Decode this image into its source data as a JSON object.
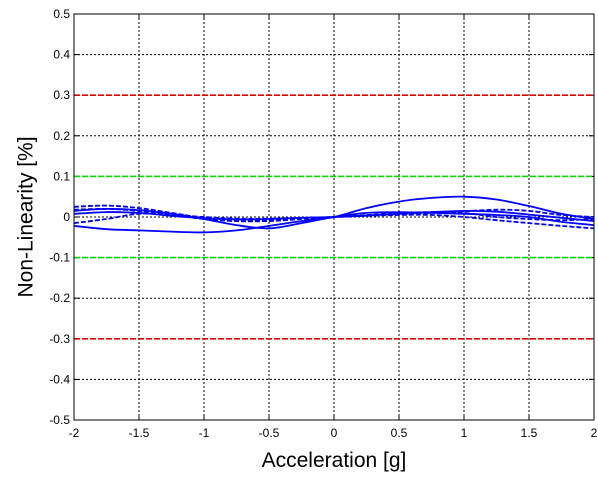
{
  "chart_data": {
    "type": "line",
    "xlabel": "Acceleration [g]",
    "ylabel": "Non-Linearity [%]",
    "xlim": [
      -2,
      2
    ],
    "ylim": [
      -0.5,
      0.5
    ],
    "xticks": [
      -2,
      -1.5,
      -1,
      -0.5,
      0,
      0.5,
      1,
      1.5,
      2
    ],
    "yticks": [
      -0.5,
      -0.4,
      -0.3,
      -0.2,
      -0.1,
      0,
      0.1,
      0.2,
      0.3,
      0.4,
      0.5
    ],
    "xtick_labels": [
      "-2",
      "-1.5",
      "-1",
      "-0.5",
      "0",
      "0.5",
      "1",
      "1.5",
      "2"
    ],
    "ytick_labels": [
      "-0.5",
      "-0.4",
      "-0.3",
      "-0.2",
      "-0.1",
      "0",
      "0.1",
      "0.2",
      "0.3",
      "0.4",
      "0.5"
    ],
    "grid": true,
    "x": [
      -2,
      -1.75,
      -1.5,
      -1.25,
      -1,
      -0.75,
      -0.5,
      -0.25,
      0,
      0.25,
      0.5,
      0.75,
      1,
      1.25,
      1.5,
      1.75,
      2
    ],
    "reference_lines": [
      {
        "y": 0.3,
        "color": "#e00000"
      },
      {
        "y": -0.3,
        "color": "#e00000"
      },
      {
        "y": 0.1,
        "color": "#00e000"
      },
      {
        "y": -0.1,
        "color": "#00e000"
      }
    ],
    "series_color": "#0000ff",
    "series": [
      {
        "values": [
          -0.022,
          -0.03,
          -0.033,
          -0.036,
          -0.038,
          -0.033,
          -0.022,
          -0.01,
          0,
          0.022,
          0.038,
          0.047,
          0.05,
          0.043,
          0.027,
          0.008,
          -0.005
        ]
      },
      {
        "values": [
          0.025,
          0.028,
          0.022,
          0.01,
          -0.002,
          -0.01,
          -0.01,
          -0.005,
          0,
          0.003,
          0.005,
          0.005,
          0.0,
          -0.008,
          -0.015,
          -0.022,
          -0.028
        ]
      },
      {
        "values": [
          0.015,
          0.02,
          0.017,
          0.008,
          -0.005,
          -0.02,
          -0.028,
          -0.015,
          0,
          0.01,
          0.012,
          0.01,
          0.008,
          0.005,
          0.0,
          -0.012,
          -0.02
        ]
      },
      {
        "values": [
          -0.015,
          -0.005,
          0.008,
          0.005,
          -0.005,
          -0.01,
          -0.008,
          -0.004,
          0,
          0.005,
          0.01,
          0.012,
          0.01,
          0.0,
          -0.005,
          -0.008,
          -0.005
        ]
      },
      {
        "values": [
          0.008,
          0.012,
          0.01,
          0.003,
          -0.003,
          -0.006,
          -0.005,
          -0.002,
          0,
          0.004,
          0.008,
          0.012,
          0.015,
          0.013,
          0.006,
          -0.002,
          -0.01
        ]
      },
      {
        "values": [
          0.018,
          0.02,
          0.015,
          0.006,
          0.0,
          -0.004,
          -0.004,
          -0.002,
          0,
          0.003,
          0.007,
          0.01,
          0.014,
          0.018,
          0.015,
          0.005,
          0.0
        ]
      }
    ]
  }
}
